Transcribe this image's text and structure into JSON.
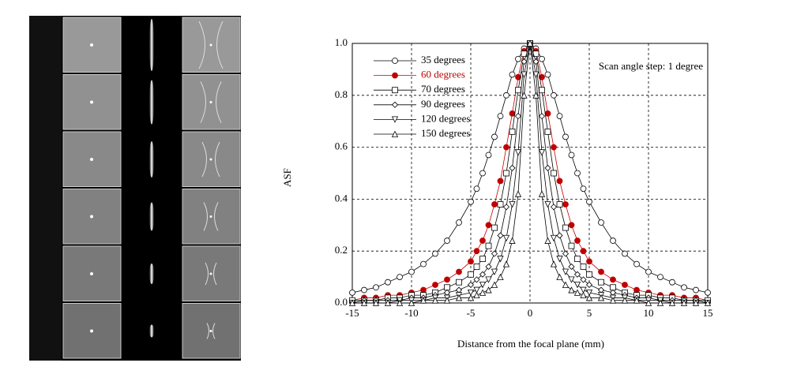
{
  "chart_data": {
    "type": "line",
    "x_label": "Distance from the focal plane (mm)",
    "y_label": "ASF",
    "annotation": "Scan angle step: 1 degree",
    "xlim": [
      -15,
      15
    ],
    "ylim": [
      0,
      1
    ],
    "xticks": [
      -15,
      -10,
      -5,
      0,
      5,
      10,
      15
    ],
    "yticks": [
      {
        "value": 0,
        "label": "0.0"
      },
      0.2,
      0.4,
      0.6,
      0.8,
      {
        "value": 1,
        "label": "1.0"
      }
    ],
    "grid": true,
    "legend": "upper left",
    "x": [
      -15,
      -14,
      -13,
      -12,
      -11,
      -10,
      -9,
      -8,
      -7,
      -6,
      -5,
      -4.5,
      -4,
      -3.5,
      -3,
      -2.5,
      -2,
      -1.5,
      -1,
      -0.5,
      0,
      0.5,
      1,
      1.5,
      2,
      2.5,
      3,
      3.5,
      4,
      4.5,
      5,
      6,
      7,
      8,
      9,
      10,
      11,
      12,
      13,
      14,
      15
    ],
    "series": [
      {
        "name": "35 degrees",
        "color": "#000000",
        "marker": "circle",
        "filled": false,
        "values": [
          0.04,
          0.05,
          0.06,
          0.08,
          0.1,
          0.12,
          0.15,
          0.19,
          0.24,
          0.31,
          0.39,
          0.44,
          0.5,
          0.57,
          0.64,
          0.72,
          0.8,
          0.88,
          0.94,
          0.98,
          1.0,
          0.98,
          0.94,
          0.88,
          0.8,
          0.72,
          0.64,
          0.57,
          0.5,
          0.44,
          0.39,
          0.31,
          0.24,
          0.19,
          0.15,
          0.12,
          0.1,
          0.08,
          0.06,
          0.05,
          0.04
        ]
      },
      {
        "name": "60 degrees",
        "color": "#c00000",
        "marker": "circle",
        "filled": true,
        "values": [
          0.01,
          0.02,
          0.02,
          0.03,
          0.03,
          0.04,
          0.05,
          0.07,
          0.09,
          0.12,
          0.16,
          0.2,
          0.24,
          0.3,
          0.38,
          0.47,
          0.6,
          0.73,
          0.87,
          0.97,
          1.0,
          0.97,
          0.87,
          0.73,
          0.6,
          0.47,
          0.38,
          0.3,
          0.24,
          0.2,
          0.16,
          0.12,
          0.09,
          0.07,
          0.05,
          0.04,
          0.03,
          0.03,
          0.02,
          0.02,
          0.01
        ]
      },
      {
        "name": "70 degrees",
        "color": "#000000",
        "marker": "square",
        "filled": false,
        "values": [
          0.01,
          0.01,
          0.01,
          0.02,
          0.02,
          0.03,
          0.03,
          0.04,
          0.06,
          0.08,
          0.11,
          0.14,
          0.17,
          0.22,
          0.29,
          0.38,
          0.5,
          0.66,
          0.82,
          0.96,
          1.0,
          0.96,
          0.82,
          0.66,
          0.5,
          0.38,
          0.29,
          0.22,
          0.17,
          0.14,
          0.11,
          0.08,
          0.06,
          0.04,
          0.03,
          0.03,
          0.02,
          0.02,
          0.01,
          0.01,
          0.01
        ]
      },
      {
        "name": "90 degrees",
        "color": "#000000",
        "marker": "diamond",
        "filled": false,
        "values": [
          0,
          0.01,
          0.01,
          0.01,
          0.01,
          0.02,
          0.02,
          0.03,
          0.04,
          0.05,
          0.07,
          0.09,
          0.11,
          0.14,
          0.19,
          0.26,
          0.37,
          0.52,
          0.72,
          0.93,
          1.0,
          0.93,
          0.72,
          0.52,
          0.37,
          0.26,
          0.19,
          0.14,
          0.11,
          0.09,
          0.07,
          0.05,
          0.04,
          0.03,
          0.02,
          0.02,
          0.01,
          0.01,
          0.01,
          0.01,
          0
        ]
      },
      {
        "name": "120 degrees",
        "color": "#000000",
        "marker": "triangle-down",
        "filled": false,
        "values": [
          0,
          0,
          0,
          0,
          0.01,
          0.01,
          0.01,
          0.02,
          0.02,
          0.03,
          0.04,
          0.05,
          0.07,
          0.09,
          0.12,
          0.17,
          0.25,
          0.38,
          0.58,
          0.88,
          1.0,
          0.88,
          0.58,
          0.38,
          0.25,
          0.17,
          0.12,
          0.09,
          0.07,
          0.05,
          0.04,
          0.03,
          0.02,
          0.02,
          0.01,
          0.01,
          0.01,
          0,
          0,
          0,
          0
        ]
      },
      {
        "name": "150 degrees",
        "color": "#000000",
        "marker": "triangle-up",
        "filled": false,
        "values": [
          0,
          0,
          0,
          0,
          0,
          0,
          0.01,
          0.01,
          0.01,
          0.02,
          0.02,
          0.03,
          0.04,
          0.05,
          0.07,
          0.1,
          0.15,
          0.24,
          0.42,
          0.8,
          1.0,
          0.8,
          0.42,
          0.24,
          0.15,
          0.1,
          0.07,
          0.05,
          0.04,
          0.03,
          0.02,
          0.02,
          0.01,
          0.01,
          0.01,
          0,
          0,
          0,
          0,
          0,
          0
        ]
      }
    ]
  }
}
